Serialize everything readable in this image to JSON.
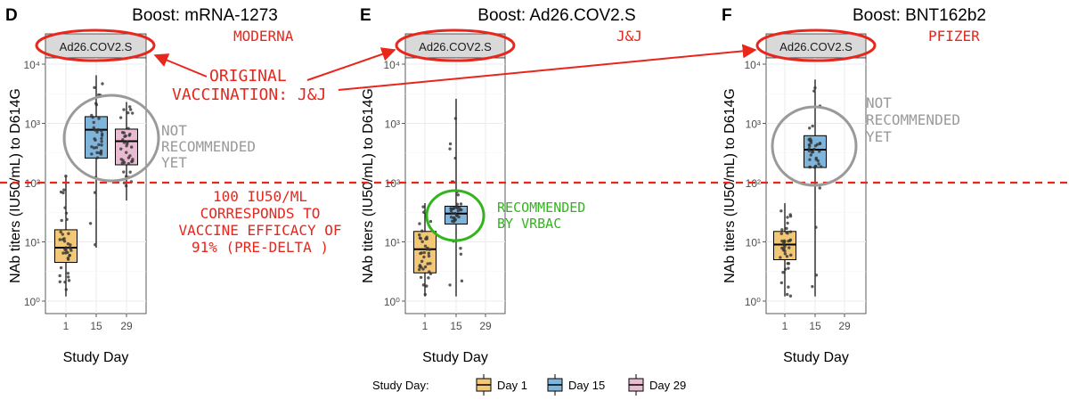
{
  "chart_data": [
    {
      "type": "box",
      "panel_letter": "D",
      "title": "Boost: mRNA-1273",
      "strip_label": "Ad26.COV2.S",
      "xlabel": "Study Day",
      "ylabel": "NAb titers (IU50/mL) to D614G",
      "categories": [
        "1",
        "15",
        "29"
      ],
      "y_scale": "log10",
      "ylim": [
        1,
        10000
      ],
      "y_ticks": [
        1,
        10,
        100,
        1000,
        10000
      ],
      "boxes": [
        {
          "day": "1",
          "min": 1.2,
          "q1": 4.5,
          "median": 8,
          "q3": 16,
          "max": 130
        },
        {
          "day": "15",
          "min": 8,
          "q1": 260,
          "median": 780,
          "q3": 1300,
          "max": 6500
        },
        {
          "day": "29",
          "min": 50,
          "q1": 200,
          "median": 500,
          "q3": 800,
          "max": 2300
        }
      ]
    },
    {
      "type": "box",
      "panel_letter": "E",
      "title": "Boost: Ad26.COV2.S",
      "strip_label": "Ad26.COV2.S",
      "xlabel": "Study Day",
      "ylabel": "NAb titers (IU50/mL) to D614G",
      "categories": [
        "1",
        "15",
        "29"
      ],
      "y_scale": "log10",
      "ylim": [
        1,
        10000
      ],
      "y_ticks": [
        1,
        10,
        100,
        1000,
        10000
      ],
      "boxes": [
        {
          "day": "1",
          "min": 1.2,
          "q1": 3,
          "median": 7.5,
          "q3": 15,
          "max": 45
        },
        {
          "day": "15",
          "min": 1.2,
          "q1": 20,
          "median": 30,
          "q3": 40,
          "max": 2600
        }
      ]
    },
    {
      "type": "box",
      "panel_letter": "F",
      "title": "Boost: BNT162b2",
      "strip_label": "Ad26.COV2.S",
      "xlabel": "Study Day",
      "ylabel": "NAb titers (IU50/mL) to D614G",
      "categories": [
        "1",
        "15",
        "29"
      ],
      "y_scale": "log10",
      "ylim": [
        1,
        10000
      ],
      "y_ticks": [
        1,
        10,
        100,
        1000,
        10000
      ],
      "boxes": [
        {
          "day": "1",
          "min": 1.2,
          "q1": 5,
          "median": 9,
          "q3": 15,
          "max": 45
        },
        {
          "day": "15",
          "min": 1.2,
          "q1": 180,
          "median": 360,
          "q3": 620,
          "max": 5500
        }
      ]
    }
  ],
  "legend": {
    "title": "Study Day:",
    "items": [
      {
        "label": "Day 1",
        "color": "#f2c776"
      },
      {
        "label": "Day 15",
        "color": "#7fb4db"
      },
      {
        "label": "Day 29",
        "color": "#e8bbd3"
      }
    ]
  },
  "annotations": {
    "threshold_value": 100,
    "threshold_color": "#e8261c",
    "moderna": "MODERNA",
    "jj": "J&J",
    "pfizer": "PFIZER",
    "original_line1": "ORIGINAL",
    "original_line2": "VACCINATION: J&J",
    "not_recommended_1": "NOT",
    "not_recommended_2": "RECOMMENDED",
    "not_recommended_3": "YET",
    "threshold_note_1": "100 IU50/ML",
    "threshold_note_2": "CORRESPONDS TO",
    "threshold_note_3": "VACCINE EFFICACY OF",
    "threshold_note_4": "91% (PRE-DELTA )",
    "recommended_1": "RECOMMENDED",
    "recommended_2": "BY VRBAC",
    "red": "#e8261c",
    "green": "#33b41e",
    "gray": "#9a9a9a"
  },
  "tick_labels": {
    "y": [
      "10⁰",
      "10¹",
      "10²",
      "10³",
      "10⁴"
    ]
  },
  "colors": {
    "day1": "#f2c776",
    "day15": "#7fb4db",
    "day29": "#e8bbd3",
    "strip": "#d9d9d9",
    "grid": "#ebebeb"
  }
}
